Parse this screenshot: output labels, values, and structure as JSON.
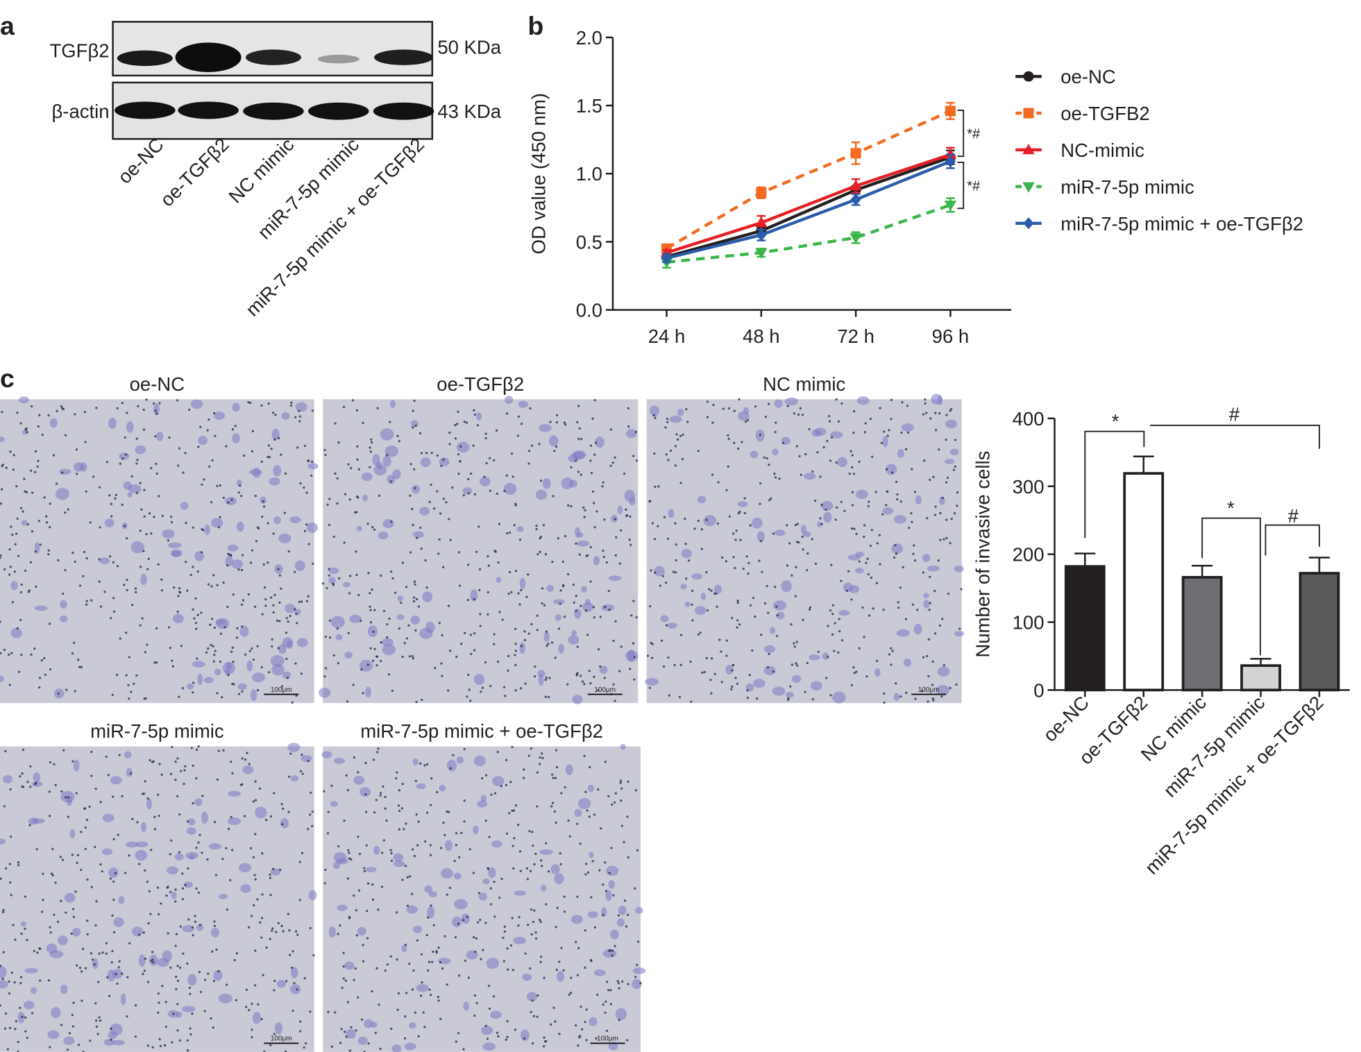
{
  "panel_labels": [
    "a",
    "b",
    "c"
  ],
  "blot": {
    "markers": [
      "TGFβ2",
      "β-actin"
    ],
    "sizes": [
      "50 KDa",
      "43 KDa"
    ],
    "lanes": [
      "oe-NC",
      "oe-TGFβ2",
      "NC mimic",
      "miR-7-5p mimic",
      "miR-7-5p mimic + oe-TGFβ2"
    ]
  },
  "micrographs": {
    "titles": [
      "oe-NC",
      "oe-TGFβ2",
      "NC mimic",
      "miR-7-5p mimic",
      "miR-7-5p mimic + oe-TGFβ2"
    ],
    "scale_bar": "100μm"
  },
  "chart_data": [
    {
      "type": "line",
      "y_label": "OD value (450 nm)",
      "categories": [
        "24 h",
        "48 h",
        "72 h",
        "96 h"
      ],
      "ylim": [
        0,
        2
      ],
      "yticks": [
        {
          "value": 0,
          "label": "0.0"
        },
        0.5,
        {
          "value": 1,
          "label": "1.0"
        },
        1.5,
        {
          "value": 2,
          "label": "2.0"
        }
      ],
      "annotations": [
        "*#",
        "*#"
      ],
      "series": [
        {
          "name": "oe-NC",
          "color": "#231f20",
          "marker": "circle",
          "dashed": false,
          "values": [
            0.39,
            0.58,
            0.88,
            1.12
          ],
          "errors": [
            0.03,
            0.03,
            0.03,
            0.05
          ]
        },
        {
          "name": "oe-TGFB2",
          "color": "#f26b21",
          "marker": "square",
          "dashed": true,
          "values": [
            0.45,
            0.86,
            1.15,
            1.46
          ],
          "errors": [
            0.02,
            0.04,
            0.08,
            0.06
          ]
        },
        {
          "name": "NC-mimic",
          "color": "#e41f26",
          "marker": "triangle",
          "dashed": false,
          "values": [
            0.42,
            0.64,
            0.91,
            1.14
          ],
          "errors": [
            0.02,
            0.05,
            0.05,
            0.05
          ]
        },
        {
          "name": "miR-7-5p mimic",
          "color": "#3ab54a",
          "marker": "triangle-down",
          "dashed": true,
          "values": [
            0.35,
            0.42,
            0.53,
            0.77
          ],
          "errors": [
            0.04,
            0.03,
            0.04,
            0.05
          ]
        },
        {
          "name": "miR-7-5p mimic + oe-TGFβ2",
          "color": "#2a5caa",
          "marker": "diamond",
          "dashed": false,
          "values": [
            0.38,
            0.55,
            0.81,
            1.09
          ],
          "errors": [
            0.03,
            0.04,
            0.04,
            0.05
          ]
        }
      ]
    },
    {
      "type": "bar",
      "y_label": "Number of invasive cells",
      "categories": [
        "oe-NC",
        "oe-TGFβ2",
        "NC mimic",
        "miR-7-5p mimic",
        "miR-7-5p mimic + oe-TGFβ2"
      ],
      "values": [
        182,
        319,
        166,
        36,
        172
      ],
      "errors": [
        19,
        25,
        17,
        10,
        23
      ],
      "colors": [
        "#231f20",
        "#ffffff",
        "#6d6e71",
        "#d1d3d4",
        "#58595b"
      ],
      "ylim": [
        0,
        400
      ],
      "yticks": [
        0,
        100,
        200,
        300,
        400
      ],
      "annotations": [
        "*",
        "#",
        "*",
        "#"
      ]
    }
  ]
}
